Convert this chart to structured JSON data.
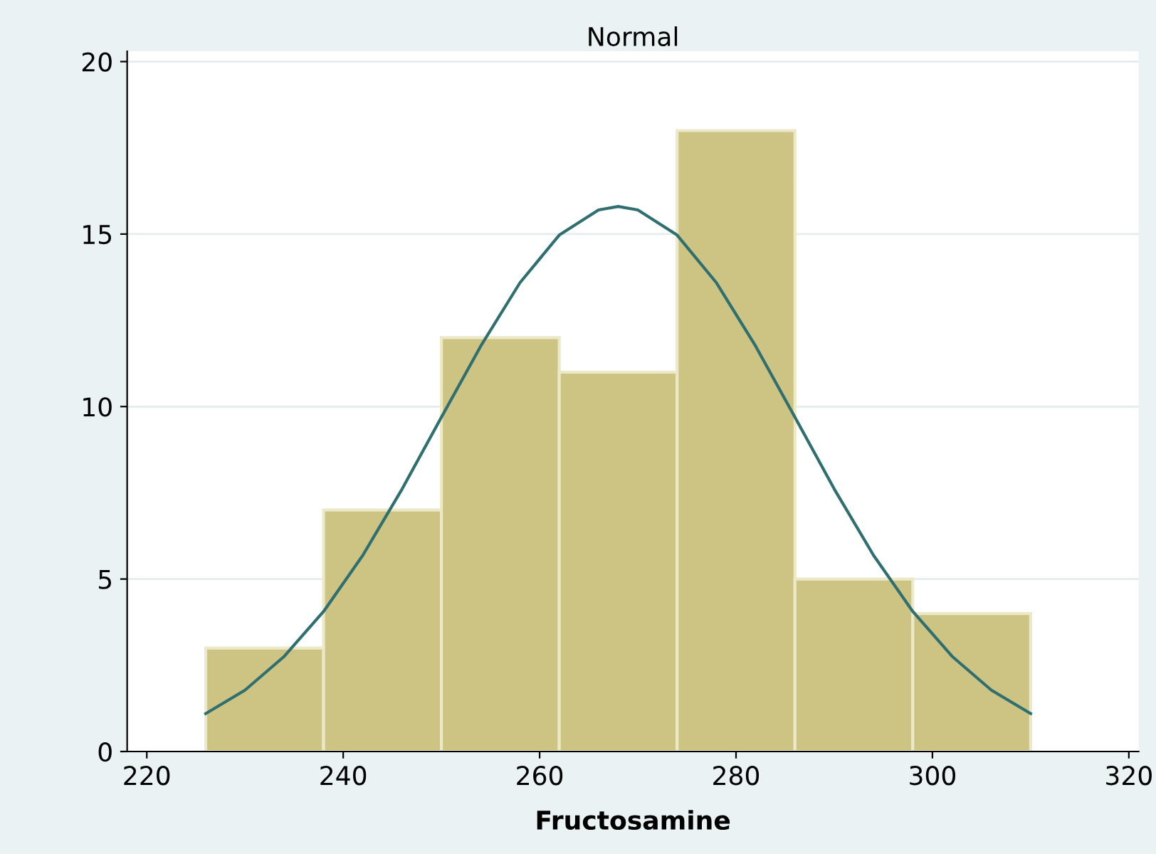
{
  "chart_data": {
    "type": "histogram",
    "title": "Normal",
    "xlabel": "Fructosamine",
    "bins": [
      226,
      238,
      250,
      262,
      274,
      286,
      298,
      310
    ],
    "values": [
      3,
      7,
      12,
      11,
      18,
      5,
      4
    ],
    "color": "#cdc382",
    "series": [
      {
        "type": "line",
        "color": "#2f6f6f",
        "x": [
          226,
          230,
          234,
          238,
          242,
          246,
          250,
          254,
          258,
          262,
          266,
          268,
          270,
          274,
          278,
          282,
          286,
          290,
          294,
          298,
          302,
          306,
          310
        ],
        "values": [
          1.1,
          1.78,
          2.76,
          4.06,
          5.69,
          7.61,
          9.69,
          11.75,
          13.59,
          14.97,
          15.7,
          15.8,
          15.7,
          14.97,
          13.59,
          11.75,
          9.69,
          7.61,
          5.69,
          4.06,
          2.76,
          1.78,
          1.1
        ]
      }
    ],
    "xlim": [
      218,
      321
    ],
    "xticks": [
      220,
      240,
      260,
      280,
      300,
      320
    ],
    "ylim": [
      0,
      20.3
    ],
    "yticks": [
      0,
      5,
      10,
      15,
      20
    ],
    "grid": "y"
  }
}
